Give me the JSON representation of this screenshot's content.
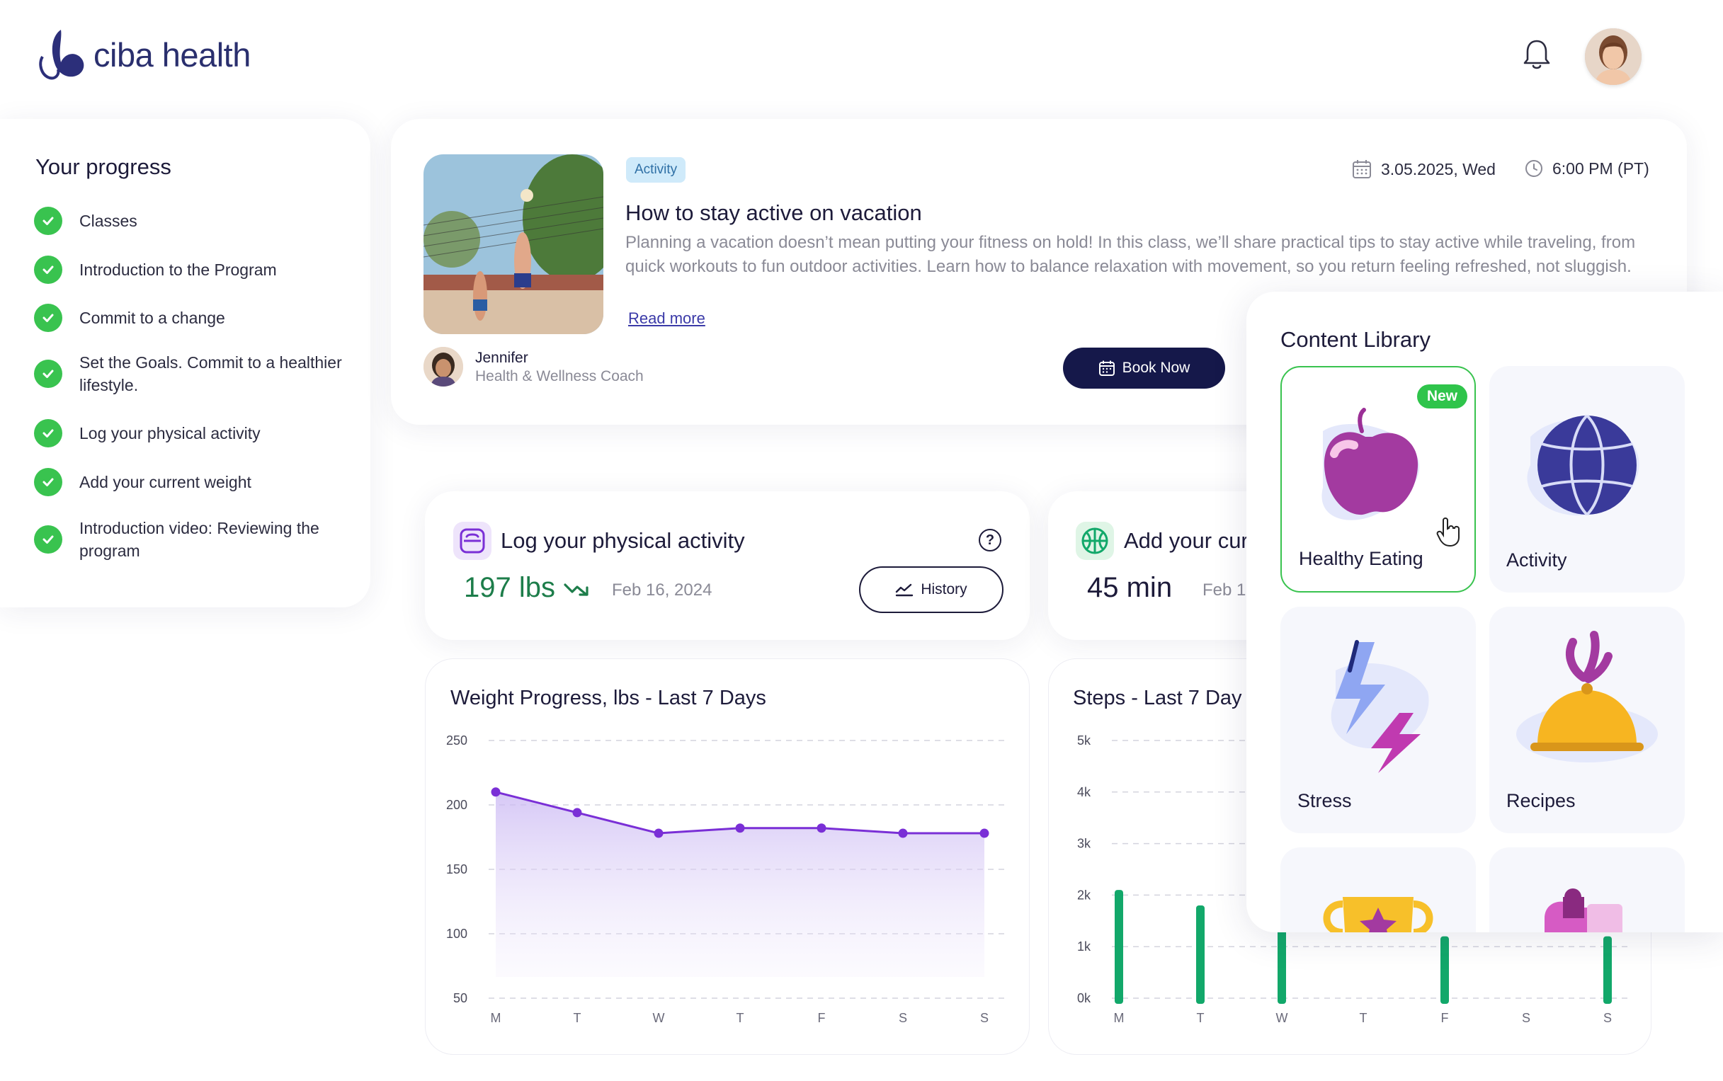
{
  "header": {
    "brand": "ciba health"
  },
  "progress": {
    "title": "Your progress",
    "items": [
      {
        "label": "Classes"
      },
      {
        "label": "Introduction to the Program"
      },
      {
        "label": "Commit to a change"
      },
      {
        "label": "Set the Goals. Commit to a healthier lifestyle."
      },
      {
        "label": "Log your physical activity"
      },
      {
        "label": "Add your current weight"
      },
      {
        "label": "Introduction video: Reviewing the program"
      }
    ]
  },
  "class_card": {
    "tag": "Activity",
    "title": "How to stay active on vacation",
    "description": "Planning a vacation doesn’t mean putting your fitness on hold! In this class, we’ll share practical tips to stay active while traveling, from quick workouts to fun outdoor activities. Learn how to balance relaxation with movement, so you return feeling refreshed, not sluggish.",
    "read_more": "Read more",
    "date": "3.05.2025, Wed",
    "time": "6:00 PM (PT)",
    "coach_name": "Jennifer",
    "coach_role": "Health & Wellness Coach",
    "book_label": "Book Now"
  },
  "activity_stat": {
    "title": "Log your physical activity",
    "value": "197 lbs",
    "date": "Feb 16, 2024",
    "history_label": "History"
  },
  "weight_stat": {
    "title": "Add your cur",
    "value": "45 min",
    "date": "Feb 1"
  },
  "weight_chart": {
    "title": "Weight Progress, lbs - Last 7 Days"
  },
  "steps_chart": {
    "title": "Steps - Last 7 Day"
  },
  "chart_data": [
    {
      "type": "area",
      "title": "Weight Progress, lbs - Last 7 Days",
      "categories": [
        "M",
        "T",
        "W",
        "T",
        "F",
        "S",
        "S"
      ],
      "values": [
        210,
        194,
        178,
        182,
        182,
        178,
        178
      ],
      "yticks": [
        "250",
        "200",
        "150",
        "100",
        "50"
      ],
      "ylim": [
        50,
        250
      ],
      "grid": true,
      "color": "#7a2fd6"
    },
    {
      "type": "bar",
      "title": "Steps - Last 7 Day",
      "categories": [
        "M",
        "T",
        "W",
        "T",
        "F",
        "S",
        "S"
      ],
      "values": [
        2100,
        1800,
        1600,
        0,
        1200,
        0,
        1200
      ],
      "yticks": [
        "5k",
        "4k",
        "3k",
        "2k",
        "1k",
        "0k"
      ],
      "ylim": [
        0,
        5000
      ],
      "grid": true,
      "color": "#12a86a"
    }
  ],
  "library": {
    "title": "Content Library",
    "new_badge": "New",
    "tiles": [
      {
        "label": "Healthy Eating",
        "icon": "apple-icon"
      },
      {
        "label": "Activity",
        "icon": "ball-icon"
      },
      {
        "label": "Stress",
        "icon": "lightning-icon"
      },
      {
        "label": "Recipes",
        "icon": "cloche-icon"
      }
    ]
  }
}
